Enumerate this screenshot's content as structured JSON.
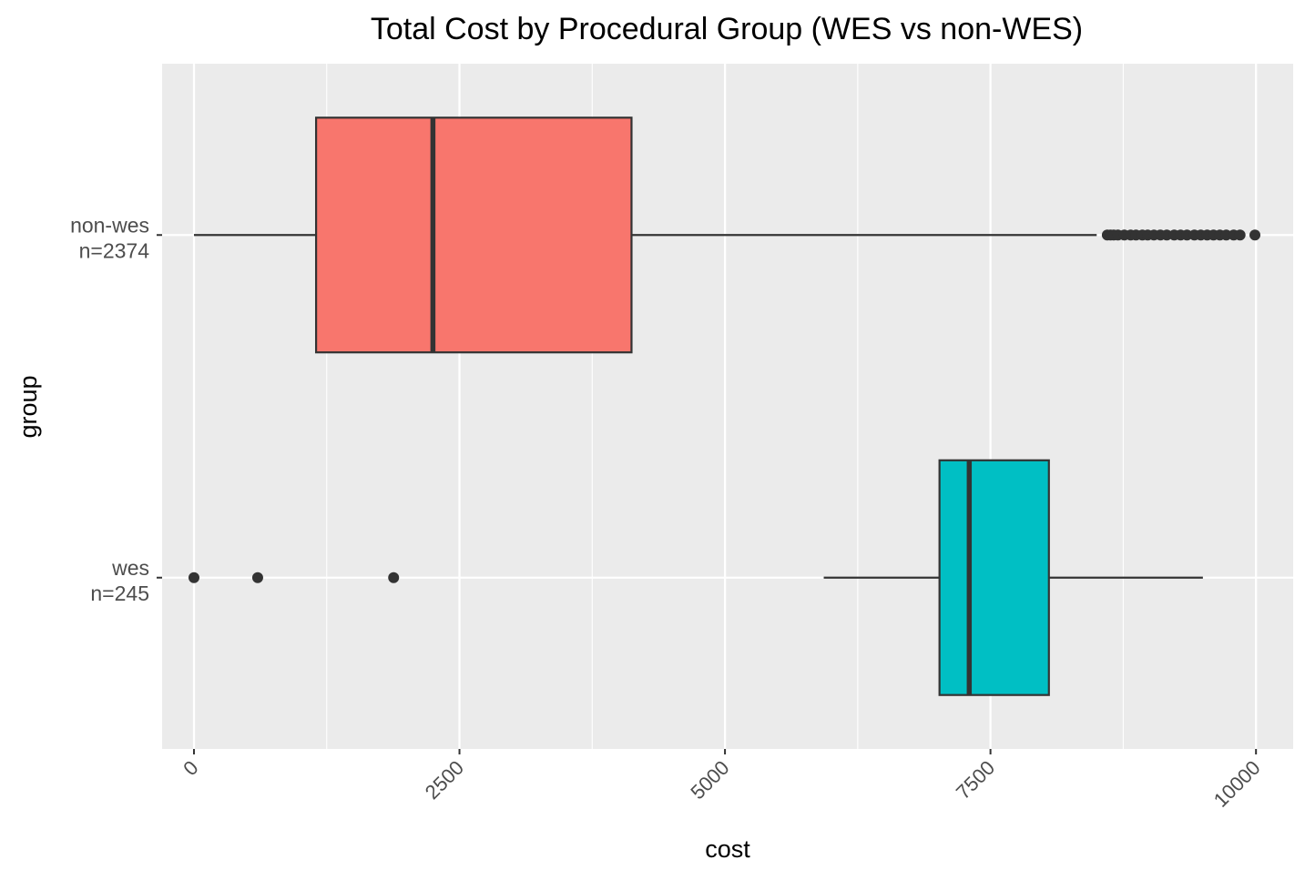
{
  "chart_data": {
    "type": "boxplot",
    "orientation": "horizontal",
    "title": "Total Cost by Procedural Group (WES vs non-WES)",
    "xlabel": "cost",
    "ylabel": "group",
    "xlim": [
      -300,
      10350
    ],
    "x_ticks": [
      0,
      2500,
      5000,
      7500,
      10000
    ],
    "x_tick_labels": [
      "0",
      "2500",
      "5000",
      "7500",
      "10000"
    ],
    "x_minor_ticks": [
      1250,
      3750,
      6250,
      8750
    ],
    "grid": true,
    "legend": "none",
    "colors": {
      "panel_background": "#EBEBEB",
      "grid": "#FFFFFF",
      "box_outline": "#333333",
      "wes_fill": "#00BFC4",
      "non_wes_fill": "#F8766D"
    },
    "groups": [
      {
        "label_line1": "wes",
        "label_line2": "n=245",
        "fill": "#00BFC4",
        "whisker_low": 5930,
        "q1": 7020,
        "median": 7300,
        "q3": 8050,
        "whisker_high": 9500,
        "outliers": [
          0,
          600,
          1880
        ]
      },
      {
        "label_line1": "non-wes",
        "label_line2": "n=2374",
        "fill": "#F8766D",
        "whisker_low": 0,
        "q1": 1150,
        "median": 2250,
        "q3": 4120,
        "whisker_high": 8500,
        "outliers": [
          8600,
          8630,
          8660,
          8700,
          8760,
          8820,
          8870,
          8930,
          8980,
          9040,
          9100,
          9160,
          9230,
          9290,
          9350,
          9420,
          9480,
          9540,
          9600,
          9660,
          9720,
          9790,
          9850,
          9990
        ]
      }
    ]
  }
}
